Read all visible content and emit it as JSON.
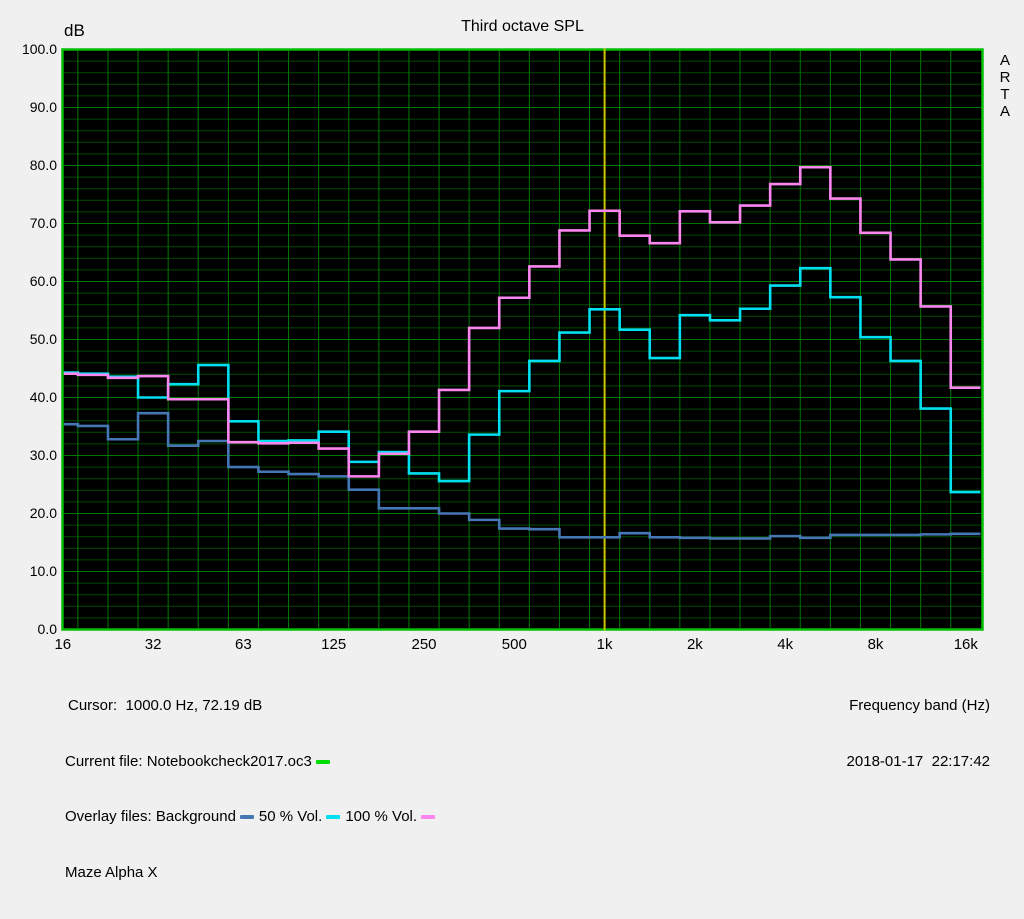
{
  "window": {
    "bg": "#f0f0f0"
  },
  "header": {
    "y_unit_label": "dB",
    "title": "Third octave SPL",
    "watermark": [
      "A",
      "R",
      "T",
      "A"
    ]
  },
  "footer": {
    "cursor_readout": "Cursor:  1000.0 Hz, 72.19 dB",
    "current_file_label": "Current file: Notebookcheck2017.oc3",
    "overlay_files_label": "Overlay files: Background",
    "overlay_50_label": "50 % Vol.",
    "overlay_100_label": "100 % Vol.",
    "device_note": "Maze Alpha X",
    "x_axis_label": "Frequency band (Hz)",
    "datetime": "2018-01-17  22:17:42"
  },
  "chart_data": {
    "type": "step-line",
    "title": "Third octave SPL",
    "xlabel": "Frequency band (Hz)",
    "ylabel": "dB",
    "ylim": [
      0,
      100
    ],
    "ytick_major_step": 10,
    "ytick_minor_step": 2,
    "grid": "on",
    "x_tick_labels": [
      "16",
      "32",
      "63",
      "125",
      "250",
      "500",
      "1k",
      "2k",
      "4k",
      "8k",
      "16k"
    ],
    "categories": [
      "16",
      "20",
      "25",
      "31.5",
      "40",
      "50",
      "63",
      "80",
      "100",
      "125",
      "160",
      "200",
      "250",
      "315",
      "400",
      "500",
      "630",
      "800",
      "1k",
      "1.25k",
      "1.6k",
      "2k",
      "2.5k",
      "3.15k",
      "4k",
      "5k",
      "6.3k",
      "8k",
      "10k",
      "12.5k",
      "16k"
    ],
    "cursor": {
      "freq_hz": 1000.0,
      "db": 72.19,
      "color": "#c9c900"
    },
    "current_file": {
      "name": "Notebookcheck2017.oc3",
      "color": "#00dd00"
    },
    "colors": {
      "plot_bg": "#000000",
      "border": "#00be00",
      "grid_major": "#007800",
      "grid_minor": "#004a00"
    },
    "series": [
      {
        "name": "Background",
        "color": "#4577b5",
        "values": [
          35.4,
          35.1,
          32.8,
          37.3,
          31.7,
          32.5,
          28.0,
          27.2,
          26.8,
          26.4,
          24.1,
          20.9,
          20.9,
          20.0,
          18.9,
          17.4,
          17.3,
          15.9,
          15.9,
          16.6,
          15.9,
          15.8,
          15.7,
          15.7,
          16.1,
          15.8,
          16.3,
          16.3,
          16.3,
          16.4,
          16.5
        ]
      },
      {
        "name": "50 % Vol.",
        "color": "#00e0f0",
        "values": [
          44.3,
          44.1,
          43.6,
          40.0,
          42.3,
          45.6,
          35.9,
          32.5,
          32.6,
          34.1,
          28.9,
          30.6,
          26.9,
          25.6,
          33.6,
          41.1,
          46.3,
          51.2,
          55.2,
          51.7,
          46.8,
          54.2,
          53.3,
          55.3,
          59.3,
          62.3,
          57.3,
          50.4,
          46.3,
          38.1,
          23.7
        ]
      },
      {
        "name": "100 % Vol.",
        "color": "#fb86f0",
        "values": [
          44.1,
          43.9,
          43.4,
          43.7,
          39.7,
          39.7,
          32.3,
          32.1,
          32.2,
          31.2,
          26.4,
          30.3,
          34.1,
          41.3,
          52.0,
          57.2,
          62.6,
          68.8,
          72.2,
          67.9,
          66.6,
          72.1,
          70.2,
          73.1,
          76.8,
          79.7,
          74.3,
          68.4,
          63.8,
          55.7,
          41.7
        ]
      }
    ]
  }
}
